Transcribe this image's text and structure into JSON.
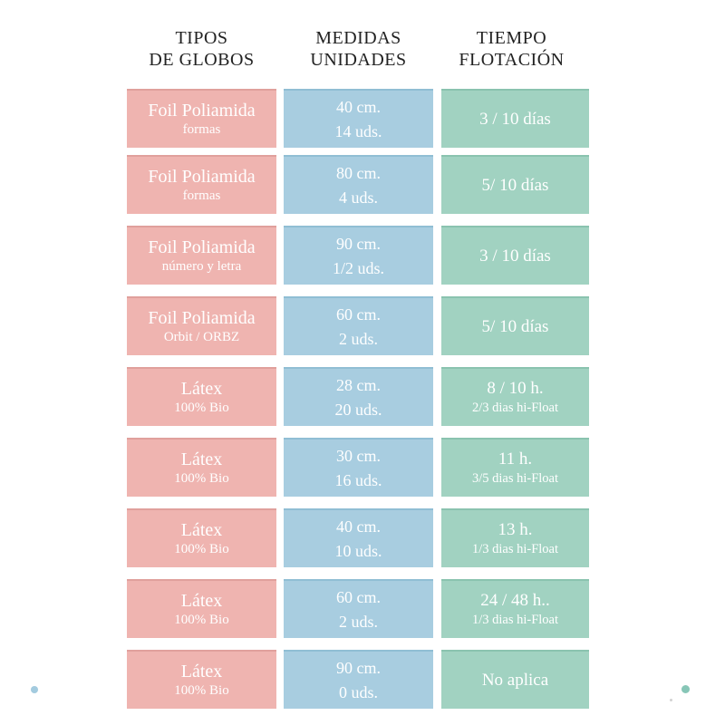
{
  "title": "Tabla de tipos de globos, medidas y tiempo de flotación",
  "colors": {
    "type_bg": "#efb4b0",
    "type_edge": "#e0a09c",
    "size_bg": "#a8cde0",
    "size_edge": "#90bed4",
    "time_bg": "#a1d2c1",
    "time_edge": "#8ac3af",
    "cell_text": "#ffffff",
    "header_text": "#222222",
    "dot_left": "#a3cbdf",
    "dot_right": "#87c6b7",
    "dot_tiny": "#d2d2d2"
  },
  "header": {
    "columns": [
      {
        "key": "tipos",
        "line1": "TIPOS",
        "line2": "DE GLOBOS"
      },
      {
        "key": "medidas",
        "line1": "MEDIDAS",
        "line2": "UNIDADES"
      },
      {
        "key": "tiempo",
        "line1": "TIEMPO",
        "line2": "FLOTACIÓN"
      }
    ]
  },
  "rows": [
    {
      "type_main": "Foil Poliamida",
      "type_sub": "formas",
      "size_main": "40 cm.",
      "size_sub": "14 uds.",
      "time_main": "3 / 10 días",
      "time_sub": ""
    },
    {
      "type_main": "Foil Poliamida",
      "type_sub": "formas",
      "size_main": "80 cm.",
      "size_sub": "4 uds.",
      "time_main": "5/ 10 días",
      "time_sub": ""
    },
    {
      "type_main": "Foil Poliamida",
      "type_sub": "número y letra",
      "size_main": "90 cm.",
      "size_sub": "1/2 uds.",
      "time_main": "3 / 10 días",
      "time_sub": ""
    },
    {
      "type_main": "Foil Poliamida",
      "type_sub": "Orbit / ORBZ",
      "size_main": "60 cm.",
      "size_sub": "2 uds.",
      "time_main": "5/ 10 días",
      "time_sub": ""
    },
    {
      "type_main": "Látex",
      "type_sub": "100% Bio",
      "size_main": "28 cm.",
      "size_sub": "20 uds.",
      "time_main": "8 / 10 h.",
      "time_sub": "2/3 dias hi-Float"
    },
    {
      "type_main": "Látex",
      "type_sub": "100% Bio",
      "size_main": "30 cm.",
      "size_sub": "16 uds.",
      "time_main": "11 h.",
      "time_sub": "3/5 dias hi-Float"
    },
    {
      "type_main": "Látex",
      "type_sub": "100% Bio",
      "size_main": "40 cm.",
      "size_sub": "10 uds.",
      "time_main": "13 h.",
      "time_sub": "1/3 dias hi-Float"
    },
    {
      "type_main": "Látex",
      "type_sub": "100% Bio",
      "size_main": "60 cm.",
      "size_sub": "2 uds.",
      "time_main": "24 / 48 h..",
      "time_sub": "1/3 dias hi-Float"
    },
    {
      "type_main": "Látex",
      "type_sub": "100% Bio",
      "size_main": "90 cm.",
      "size_sub": "0 uds.",
      "time_main": "No aplica",
      "time_sub": ""
    }
  ],
  "chart_data": {
    "type": "table",
    "columns": [
      "TIPOS DE GLOBOS",
      "MEDIDAS UNIDADES",
      "TIEMPO FLOTACIÓN"
    ],
    "rows": [
      [
        "Foil Poliamida (formas)",
        "40 cm. / 14 uds.",
        "3 / 10 días"
      ],
      [
        "Foil Poliamida (formas)",
        "80 cm. / 4 uds.",
        "5/ 10 días"
      ],
      [
        "Foil Poliamida (número y letra)",
        "90 cm. / 1/2 uds.",
        "3 / 10 días"
      ],
      [
        "Foil Poliamida (Orbit / ORBZ)",
        "60 cm. / 2 uds.",
        "5/ 10 días"
      ],
      [
        "Látex 100% Bio",
        "28 cm. / 20 uds.",
        "8 / 10 h. — 2/3 dias hi-Float"
      ],
      [
        "Látex 100% Bio",
        "30 cm. / 16 uds.",
        "11 h. — 3/5 dias hi-Float"
      ],
      [
        "Látex 100% Bio",
        "40 cm. / 10 uds.",
        "13 h. — 1/3 dias hi-Float"
      ],
      [
        "Látex 100% Bio",
        "60 cm. / 2 uds.",
        "24 / 48 h.. — 1/3 dias hi-Float"
      ],
      [
        "Látex 100% Bio",
        "90 cm. / 0 uds.",
        "No aplica"
      ]
    ]
  }
}
